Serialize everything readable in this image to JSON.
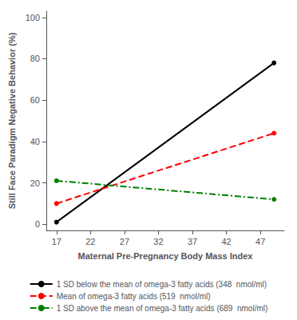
{
  "chart_data": {
    "type": "line",
    "xlabel": "Maternal Pre-Pregnancy Body Mass Index",
    "ylabel": "Still Face Paradigm Negative Behavior (%)",
    "xlim": [
      15.5,
      50.5
    ],
    "ylim": [
      -3,
      103
    ],
    "xticks": [
      17,
      22,
      27,
      32,
      37,
      42,
      47
    ],
    "yticks": [
      0,
      20,
      40,
      60,
      80,
      100
    ],
    "grid": false,
    "legend": "bottom",
    "series": [
      {
        "name": "1 SD below the mean of omega-3 fatty acids (348  nmol/ml)",
        "color": "black",
        "line_style": "solid",
        "marker": "circle",
        "x": [
          17,
          49
        ],
        "values": [
          1,
          78
        ]
      },
      {
        "name": "Mean of omega-3 fatty acids (519  nmol/ml)",
        "color": "red",
        "line_style": "dashed",
        "marker": "circle",
        "x": [
          17,
          49
        ],
        "values": [
          10,
          44
        ]
      },
      {
        "name": "1 SD above the mean of omega-3 fatty acids (689  nmol/ml)",
        "color": "green",
        "line_style": "dashdot",
        "marker": "circle",
        "x": [
          17,
          49
        ],
        "values": [
          21,
          12
        ]
      }
    ]
  }
}
